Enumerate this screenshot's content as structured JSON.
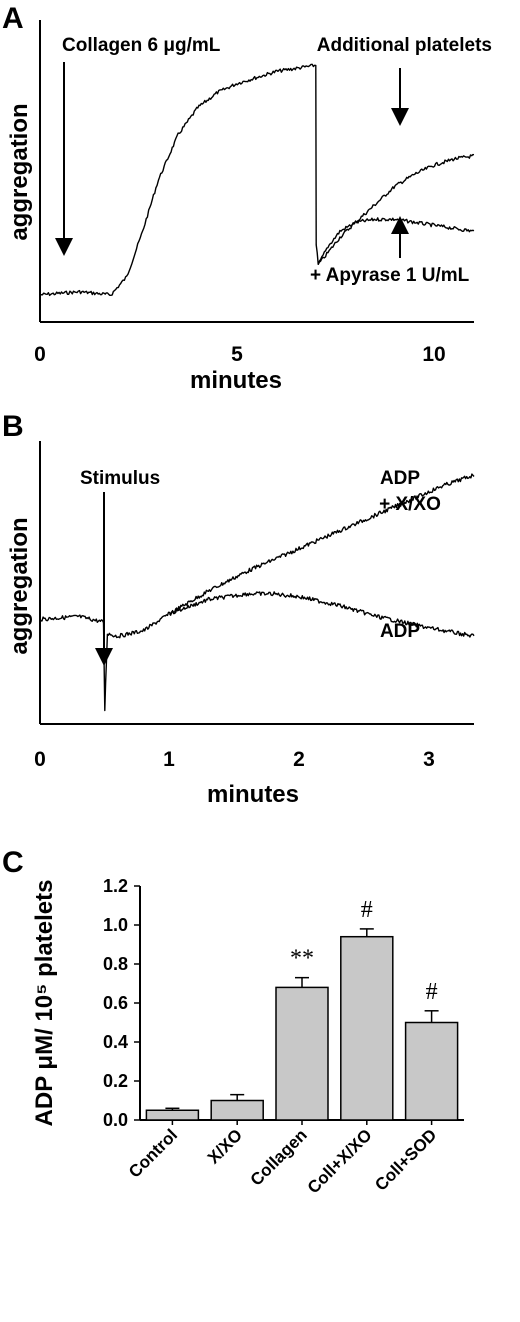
{
  "chart_data": [
    {
      "panel": "A",
      "type": "line",
      "xlabel": "minutes",
      "ylabel": "aggregation",
      "xlim": [
        0,
        11
      ],
      "x_ticks": [
        "0",
        "5",
        "10"
      ],
      "annotations": {
        "collagen": "Collagen 6 μg/mL",
        "additional": "Additional platelets",
        "apyrase": "+ Apyrase 1 U/mL"
      },
      "series": [
        {
          "x": [
            0,
            1,
            1.8,
            2.2,
            2.6,
            3,
            3.5,
            4,
            4.5,
            5,
            5.5,
            6,
            6.5,
            6.99,
            7.0,
            7.05,
            7.3,
            7.6,
            8,
            8.5,
            9,
            9.5,
            10,
            10.5,
            11
          ],
          "y": [
            0.09,
            0.1,
            0.09,
            0.15,
            0.3,
            0.47,
            0.62,
            0.71,
            0.76,
            0.79,
            0.81,
            0.83,
            0.84,
            0.85,
            0.26,
            0.19,
            0.23,
            0.28,
            0.33,
            0.39,
            0.45,
            0.49,
            0.52,
            0.54,
            0.55
          ]
        },
        {
          "x": [
            7.05,
            7.3,
            7.6,
            8,
            8.5,
            9,
            9.5,
            10,
            10.5,
            11
          ],
          "y": [
            0.19,
            0.25,
            0.3,
            0.33,
            0.34,
            0.34,
            0.33,
            0.32,
            0.31,
            0.3
          ]
        }
      ]
    },
    {
      "panel": "B",
      "type": "line",
      "xlabel": "minutes",
      "ylabel": "aggregation",
      "xlim": [
        0,
        3.35
      ],
      "x_ticks": [
        "0",
        "1",
        "2",
        "3"
      ],
      "annotations": {
        "stimulus": "Stimulus",
        "adp_xxo_1": "ADP",
        "adp_xxo_2": "+ X/XO",
        "adp": "ADP"
      },
      "series": [
        {
          "name": "ADP + X/XO",
          "x": [
            0,
            0.3,
            0.49,
            0.5,
            0.52,
            0.6,
            0.8,
            1.0,
            1.3,
            1.6,
            2.0,
            2.4,
            2.8,
            3.1,
            3.35
          ],
          "y": [
            0.37,
            0.38,
            0.36,
            0.05,
            0.32,
            0.31,
            0.33,
            0.39,
            0.47,
            0.54,
            0.62,
            0.7,
            0.78,
            0.84,
            0.88
          ]
        },
        {
          "name": "ADP",
          "x": [
            1.0,
            1.3,
            1.6,
            1.8,
            2.0,
            2.3,
            2.6,
            3.0,
            3.35
          ],
          "y": [
            0.39,
            0.44,
            0.46,
            0.46,
            0.45,
            0.42,
            0.38,
            0.34,
            0.31
          ]
        }
      ]
    },
    {
      "panel": "C",
      "type": "bar",
      "ylabel": "ADP μM/ 10⁵ platelets",
      "ylim": [
        0,
        1.2
      ],
      "y_ticks": [
        "0.0",
        "0.2",
        "0.4",
        "0.6",
        "0.8",
        "1.0",
        "1.2"
      ],
      "categories": [
        "Control",
        "X/XO",
        "Collagen",
        "Coll+X/XO",
        "Coll+SOD"
      ],
      "values": [
        0.05,
        0.1,
        0.68,
        0.94,
        0.5
      ],
      "errors": [
        0.01,
        0.03,
        0.05,
        0.04,
        0.06
      ],
      "labels": [
        "",
        "",
        "**",
        "#",
        "#"
      ]
    }
  ],
  "panels": {
    "a": "A",
    "b": "B",
    "c": "C"
  }
}
